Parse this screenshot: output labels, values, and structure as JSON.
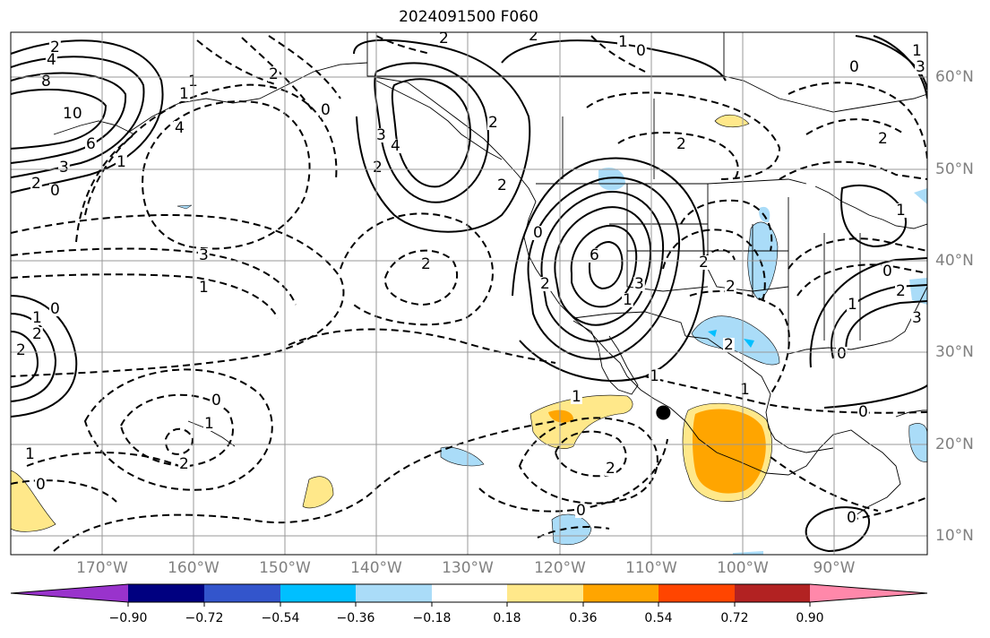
{
  "title": "2024091500 F060",
  "map": {
    "lon_labels": [
      "170°W",
      "160°W",
      "150°W",
      "140°W",
      "130°W",
      "120°W",
      "110°W",
      "100°W",
      "90°W"
    ],
    "lat_labels": [
      "60°N",
      "50°N",
      "40°N",
      "30°N",
      "20°N",
      "10°N"
    ],
    "lon_range": [
      -180,
      -80
    ],
    "lat_range": [
      8,
      65
    ],
    "marker": {
      "lon": -108.8,
      "lat": 23.5
    },
    "contour_labels": [
      "2",
      "2",
      "1",
      "0",
      "2",
      "4",
      "8",
      "10",
      "6",
      "3",
      "2",
      "0",
      "1",
      "1",
      "4",
      "1",
      "2",
      "0",
      "3",
      "4",
      "2",
      "2",
      "2",
      "0",
      "2",
      "3",
      "1",
      "2",
      "2",
      "0",
      "2",
      "6",
      "3",
      "1",
      "2",
      "0",
      "1",
      "2",
      "0",
      "1",
      "2",
      "1",
      "0",
      "1",
      "3",
      "3",
      "1",
      "0",
      "1",
      "2",
      "2",
      "1",
      "0",
      "2",
      "1",
      "0",
      "1",
      "2",
      "0",
      "2",
      "0"
    ]
  },
  "colorbar": {
    "ticks": [
      "−0.90",
      "−0.72",
      "−0.54",
      "−0.36",
      "−0.18",
      "0.18",
      "0.36",
      "0.54",
      "0.72",
      "0.90"
    ],
    "colors": [
      "#9933cc",
      "#000080",
      "#3355cc",
      "#00bfff",
      "#aadcf8",
      "#ffffff",
      "#ffe88a",
      "#ffa500",
      "#ff4500",
      "#b22222",
      "#ff88aa"
    ]
  }
}
